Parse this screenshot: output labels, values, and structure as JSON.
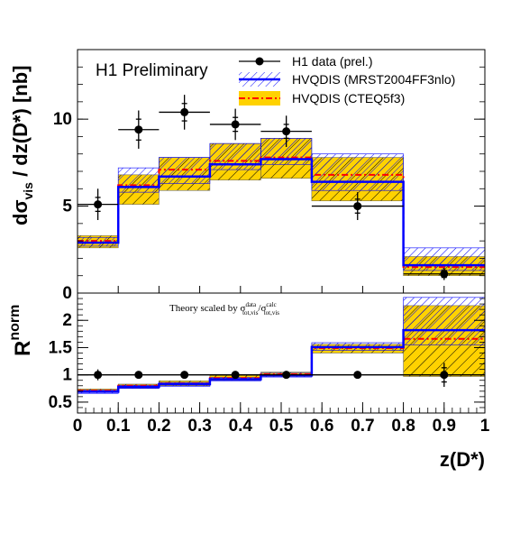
{
  "chart_data": [
    {
      "type": "line",
      "panel": "upper",
      "title": "",
      "watermark": "H1 Preliminary",
      "xlabel": "",
      "ylabel_parts": [
        "dσ",
        "vis",
        " / dz(D*) [nb]"
      ],
      "xlim": [
        0,
        1
      ],
      "ylim": [
        0,
        14
      ],
      "y_ticks": [
        {
          "v": 0,
          "label": "0"
        },
        {
          "v": 5,
          "label": "5"
        },
        {
          "v": 10,
          "label": "10"
        }
      ],
      "bins": [
        0,
        0.1,
        0.2,
        0.325,
        0.45,
        0.575,
        0.8,
        1.0
      ],
      "legend_position": "top-right",
      "legend": [
        {
          "label": "H1 data (prel.)",
          "kind": "marker"
        },
        {
          "label": "HVQDIS (MRST2004FF3nlo)",
          "kind": "hatched-band"
        },
        {
          "label": "HVQDIS (CTEQ5f3)",
          "kind": "filled-band"
        }
      ],
      "series": [
        {
          "name": "H1 data (prel.)",
          "x": [
            0.05,
            0.15,
            0.2625,
            0.3875,
            0.5125,
            0.6875,
            0.9
          ],
          "x_err": [
            0.05,
            0.05,
            0.0625,
            0.0625,
            0.0625,
            0.1125,
            0.1
          ],
          "y": [
            5.1,
            9.4,
            10.4,
            9.7,
            9.3,
            5.0,
            1.1
          ],
          "y_err_stat": [
            0.4,
            0.6,
            0.5,
            0.4,
            0.4,
            0.4,
            0.2
          ],
          "y_err_tot": [
            0.9,
            1.1,
            1.0,
            0.9,
            0.9,
            0.8,
            0.35
          ],
          "color": "#000000"
        },
        {
          "name": "HVQDIS (MRST2004FF3nlo)",
          "central": [
            2.9,
            6.1,
            6.7,
            7.4,
            7.7,
            6.4,
            1.6
          ],
          "band_low": [
            2.7,
            5.8,
            6.3,
            7.1,
            7.4,
            5.9,
            1.3
          ],
          "band_high": [
            3.2,
            7.2,
            7.8,
            8.6,
            8.9,
            8.0,
            2.6
          ],
          "color": "#0000ff"
        },
        {
          "name": "HVQDIS (CTEQ5f3)",
          "central": [
            3.0,
            6.2,
            7.1,
            7.6,
            7.8,
            6.8,
            1.5
          ],
          "band_low": [
            2.6,
            5.1,
            5.9,
            6.5,
            6.6,
            5.3,
            1.0
          ],
          "band_high": [
            3.3,
            6.8,
            7.8,
            8.6,
            8.9,
            7.8,
            2.1
          ],
          "color": "#ff0000",
          "fill": "#ffd200"
        }
      ]
    },
    {
      "type": "line",
      "panel": "lower",
      "title": "",
      "xlabel": "z(D*)",
      "ylabel_parts": [
        "R",
        "norm"
      ],
      "annotation_parts": [
        "Theory scaled by σ",
        "data",
        "tot,vis",
        "/σ",
        "calc",
        "tot,vis"
      ],
      "xlim": [
        0,
        1
      ],
      "ylim": [
        0.3,
        2.5
      ],
      "y_ticks": [
        {
          "v": 0.5,
          "label": "0.5"
        },
        {
          "v": 1.0,
          "label": "1"
        },
        {
          "v": 1.5,
          "label": "1.5"
        },
        {
          "v": 2.0,
          "label": "2"
        }
      ],
      "x_ticks": [
        {
          "v": 0,
          "label": "0"
        },
        {
          "v": 0.1,
          "label": "0.1"
        },
        {
          "v": 0.2,
          "label": "0.2"
        },
        {
          "v": 0.3,
          "label": "0.3"
        },
        {
          "v": 0.4,
          "label": "0.4"
        },
        {
          "v": 0.5,
          "label": "0.5"
        },
        {
          "v": 0.6,
          "label": "0.6"
        },
        {
          "v": 0.7,
          "label": "0.7"
        },
        {
          "v": 0.8,
          "label": "0.8"
        },
        {
          "v": 0.9,
          "label": "0.9"
        },
        {
          "v": 1.0,
          "label": "1"
        }
      ],
      "bins": [
        0,
        0.1,
        0.2,
        0.325,
        0.45,
        0.575,
        0.8,
        1.0
      ],
      "series": [
        {
          "name": "H1 data (prel.)",
          "x": [
            0.05,
            0.15,
            0.2625,
            0.3875,
            0.5125,
            0.6875,
            0.9
          ],
          "x_err": [
            0.05,
            0.05,
            0.0625,
            0.0625,
            0.0625,
            0.1125,
            0.1
          ],
          "y": [
            1.0,
            1.0,
            1.0,
            1.0,
            1.0,
            1.0,
            1.0
          ],
          "y_err_stat": [
            0.05,
            0.03,
            0.03,
            0.03,
            0.03,
            0.04,
            0.13
          ],
          "y_err_tot": [
            0.1,
            0.05,
            0.05,
            0.05,
            0.05,
            0.06,
            0.22
          ],
          "color": "#000000"
        },
        {
          "name": "HVQDIS (MRST2004FF3nlo)",
          "central": [
            0.69,
            0.78,
            0.83,
            0.92,
            0.99,
            1.51,
            1.82
          ],
          "band_low": [
            0.66,
            0.75,
            0.79,
            0.89,
            0.96,
            1.45,
            1.55
          ],
          "band_high": [
            0.72,
            0.81,
            0.86,
            0.95,
            1.03,
            1.59,
            2.42
          ],
          "color": "#0000ff"
        },
        {
          "name": "HVQDIS (CTEQ5f3)",
          "central": [
            0.71,
            0.8,
            0.84,
            0.94,
            1.01,
            1.49,
            1.66
          ],
          "band_low": [
            0.68,
            0.76,
            0.8,
            0.9,
            0.97,
            1.4,
            0.97
          ],
          "band_high": [
            0.74,
            0.83,
            0.89,
            0.99,
            1.05,
            1.56,
            2.27
          ],
          "color": "#ff0000",
          "fill": "#ffd200"
        }
      ]
    }
  ]
}
